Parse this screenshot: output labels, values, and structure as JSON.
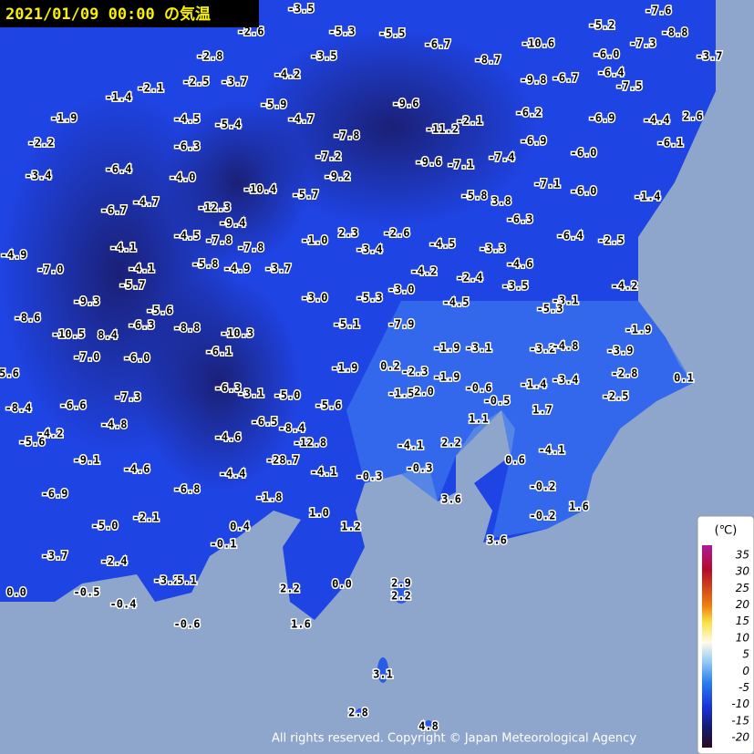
{
  "header": {
    "title": "2021/01/09 00:00 の気温"
  },
  "stations": [
    "-3.5",
    "-5.3",
    "-5.5",
    "-2.6",
    "-7.6",
    "-5.2",
    "-8.8",
    "-7.3",
    "-3.7",
    "-10.6",
    "-6.7",
    "-6.0",
    "-8.7",
    "-6.4",
    "-7.5",
    "-9.8",
    "-6.7",
    "-2.8",
    "-3.5",
    "-4.2",
    "-2.5",
    "-3.7",
    "-2.1",
    "-1.4",
    "-9.6",
    "-5.9",
    "-6.2",
    "-6.9",
    "-4.4",
    "2.6",
    "-4.7",
    "-4.5",
    "-5.4",
    "-1.9",
    "-11.2",
    "-2.1",
    "-7.8",
    "-6.9",
    "-6.1",
    "-2.2",
    "-6.3",
    "-7.2",
    "-6.0",
    "-9.6",
    "-7.1",
    "-7.4",
    "-3.4",
    "-6.4",
    "-4.0",
    "-9.2",
    "-10.4",
    "-5.7",
    "-7.1",
    "-6.0",
    "-1.4",
    "-5.8",
    "3.8",
    "-6.7",
    "-4.7",
    "-12.3",
    "-6.3",
    "-9.4",
    "-1.0",
    "2.3",
    "-2.6",
    "-6.4",
    "-2.5",
    "-4.5",
    "-7.8",
    "-7.8",
    "-3.4",
    "-4.5",
    "-3.3",
    "-4.9",
    "-4.1",
    "-7.0",
    "-4.1",
    "-5.8",
    "-4.9",
    "-3.7",
    "-4.6",
    "-4.2",
    "-2.4",
    "-3.5",
    "-4.2",
    "-5.7",
    "-3.0",
    "-5.3",
    "-3.0",
    "-4.5",
    "-3.1",
    "-5.3",
    "-9.3",
    "-5.6",
    "-8.6",
    "-5.1",
    "-7.9",
    "-1.9",
    "-10.5",
    "8.4",
    "-6.3",
    "-8.8",
    "-10.3",
    "-1.9",
    "-3.1",
    "-3.2",
    "-4.8",
    "-3.9",
    "-7.0",
    "-6.0",
    "-6.1",
    "-1.9",
    "0.2",
    "-2.3",
    "-1.9",
    "-3.4",
    "-2.8",
    "0.1",
    "5.6",
    "-1.4",
    "-6.3",
    "-3.1",
    "-5.0",
    "-5.6",
    "-7.3",
    "-6.6",
    "-8.4",
    "-1.5",
    "2.0",
    "-0.6",
    "-0.5",
    "1.7",
    "-2.5",
    "1.1",
    "-4.8",
    "-6.5",
    "-8.4",
    "-5.6",
    "-4.2",
    "-4.6",
    "-12.8",
    "-4.1",
    "2.2",
    "-4.1",
    "0.6",
    "-9.1",
    "-28.7",
    "-4.6",
    "-4.4",
    "-4.1",
    "-0.3",
    "-0.3",
    "-0.2",
    "-6.9",
    "-6.8",
    "-1.8",
    "3.6",
    "1.6",
    "1.0",
    "-2.1",
    "-0.2",
    "-5.0",
    "0.4",
    "1.2",
    "-0.1",
    "3.6",
    "-3.7",
    "-2.4",
    "-3.2",
    "5.1",
    "2.2",
    "0.0",
    "2.9",
    "2.2",
    "0.0",
    "-0.5",
    "-0.4",
    "-0.6",
    "1.6",
    "3.1",
    "2.8",
    "4.8"
  ],
  "legend": {
    "unit": "(℃)",
    "labels": [
      "35",
      "30",
      "25",
      "20",
      "15",
      "10",
      "5",
      "0",
      "-5",
      "-10",
      "-15",
      "-20"
    ]
  },
  "footer": {
    "copyright": "All rights reserved. Copyright © Japan Meteorological Agency"
  }
}
